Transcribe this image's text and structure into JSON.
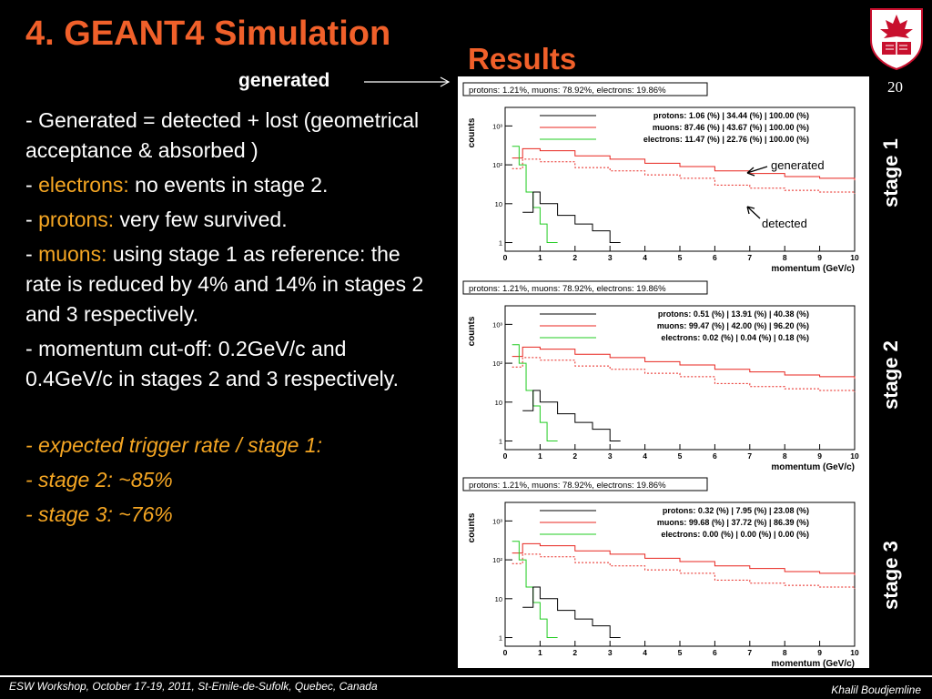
{
  "slide": {
    "title": "4. GEANT4 Simulation",
    "results_heading": "Results",
    "generated_label": "generated",
    "page_number": "20",
    "bullets": [
      {
        "prefix": "- ",
        "highlight": "",
        "text": "Generated = detected + lost (geometrical acceptance & absorbed )"
      },
      {
        "prefix": "- ",
        "highlight": "electrons:",
        "text": " no events in stage 2."
      },
      {
        "prefix": "- ",
        "highlight": "protons:",
        "text": " very few survived."
      },
      {
        "prefix": "- ",
        "highlight": "muons:",
        "text": " using stage 1 as reference: the rate is reduced by 4% and 14% in stages 2 and 3 respectively."
      },
      {
        "prefix": "- ",
        "highlight": "",
        "text": "momentum cut-off: 0.2GeV/c and 0.4GeV/c in stages 2 and 3 respectively."
      }
    ],
    "trigger": [
      "- expected trigger rate / stage 1:",
      "- stage 2: ~85%",
      "- stage 3: ~76%"
    ],
    "footer_left": "ESW Workshop, October 17-19, 2011, St-Emile-de-Sufolk, Quebec, Canada",
    "footer_right": "Khalil Boudjemline"
  },
  "colors": {
    "title": "#f0602a",
    "highlight": "#f5a623",
    "protons": "#000000",
    "muons": "#e8251f",
    "electrons": "#22cc22"
  },
  "chart_data": [
    {
      "type": "line",
      "stage_label": "stage 1",
      "header": "protons: 1.21%, muons: 78.92%, electrons: 19.86%",
      "xlabel": "momentum (GeV/c)",
      "ylabel": "counts",
      "yscale": "log",
      "xticks": [
        "0",
        "1",
        "2",
        "3",
        "4",
        "5",
        "6",
        "7",
        "8",
        "9",
        "10"
      ],
      "yticks": [
        "1",
        "10",
        "10²",
        "10³"
      ],
      "legend": [
        {
          "name": "protons:  1.06 (%) | 34.44 (%) | 100.00 (%)",
          "color": "#000000"
        },
        {
          "name": "muons: 87.46 (%) | 43.67 (%) | 100.00 (%)",
          "color": "#e8251f"
        },
        {
          "name": "electrons: 11.47 (%) | 22.76 (%) | 100.00 (%)",
          "color": "#22cc22"
        }
      ],
      "annotations": [
        "generated",
        "detected"
      ],
      "series": [
        {
          "name": "muons",
          "style": "solid",
          "x": [
            0.2,
            0.5,
            1,
            2,
            3,
            4,
            5,
            6,
            7,
            8,
            9,
            10
          ],
          "y": [
            150,
            260,
            230,
            170,
            140,
            110,
            90,
            70,
            60,
            50,
            45,
            40
          ]
        },
        {
          "name": "muons",
          "style": "dashed",
          "x": [
            0.2,
            0.5,
            1,
            2,
            3,
            4,
            5,
            6,
            7,
            8,
            9,
            10
          ],
          "y": [
            80,
            140,
            120,
            85,
            70,
            55,
            45,
            30,
            25,
            22,
            20,
            18
          ]
        },
        {
          "name": "electrons",
          "style": "solid",
          "x": [
            0.2,
            0.4,
            0.6,
            0.8,
            1.0,
            1.2
          ],
          "y": [
            300,
            100,
            20,
            8,
            3,
            1
          ]
        },
        {
          "name": "protons",
          "style": "solid",
          "x": [
            0.5,
            0.8,
            1.0,
            1.5,
            2.0,
            2.5,
            3.0
          ],
          "y": [
            6,
            20,
            10,
            5,
            3,
            2,
            1
          ]
        }
      ]
    },
    {
      "type": "line",
      "stage_label": "stage 2",
      "header": "protons: 1.21%, muons: 78.92%, electrons: 19.86%",
      "xlabel": "momentum (GeV/c)",
      "ylabel": "counts",
      "yscale": "log",
      "xticks": [
        "0",
        "1",
        "2",
        "3",
        "4",
        "5",
        "6",
        "7",
        "8",
        "9",
        "10"
      ],
      "yticks": [
        "1",
        "10",
        "10²",
        "10³"
      ],
      "legend": [
        {
          "name": "protons:  0.51 (%) | 13.91 (%) | 40.38 (%)",
          "color": "#000000"
        },
        {
          "name": "muons: 99.47 (%) | 42.00 (%) | 96.20 (%)",
          "color": "#e8251f"
        },
        {
          "name": "electrons: 0.02 (%) |  0.04 (%) |  0.18 (%)",
          "color": "#22cc22"
        }
      ],
      "series": [
        {
          "name": "muons",
          "style": "solid",
          "x": [
            0.2,
            0.5,
            1,
            2,
            3,
            4,
            5,
            6,
            7,
            8,
            9,
            10
          ],
          "y": [
            150,
            260,
            230,
            170,
            140,
            110,
            90,
            70,
            60,
            50,
            45,
            40
          ]
        },
        {
          "name": "muons",
          "style": "dashed",
          "x": [
            0.2,
            0.5,
            1,
            2,
            3,
            4,
            5,
            6,
            7,
            8,
            9,
            10
          ],
          "y": [
            80,
            140,
            120,
            85,
            70,
            55,
            45,
            30,
            25,
            22,
            20,
            18
          ]
        },
        {
          "name": "electrons",
          "style": "solid",
          "x": [
            0.2,
            0.4,
            0.6,
            0.8,
            1.0,
            1.2
          ],
          "y": [
            300,
            100,
            20,
            8,
            3,
            1
          ]
        },
        {
          "name": "protons",
          "style": "solid",
          "x": [
            0.5,
            0.8,
            1.0,
            1.5,
            2.0,
            2.5,
            3.0
          ],
          "y": [
            6,
            20,
            10,
            5,
            3,
            2,
            1
          ]
        }
      ]
    },
    {
      "type": "line",
      "stage_label": "stage 3",
      "header": "protons: 1.21%, muons: 78.92%, electrons: 19.86%",
      "xlabel": "momentum (GeV/c)",
      "ylabel": "counts",
      "yscale": "log",
      "xticks": [
        "0",
        "1",
        "2",
        "3",
        "4",
        "5",
        "6",
        "7",
        "8",
        "9",
        "10"
      ],
      "yticks": [
        "1",
        "10",
        "10²",
        "10³"
      ],
      "legend": [
        {
          "name": "protons:  0.32 (%) |  7.95 (%) | 23.08 (%)",
          "color": "#000000"
        },
        {
          "name": "muons: 99.68 (%) | 37.72 (%) | 86.39 (%)",
          "color": "#e8251f"
        },
        {
          "name": "electrons: 0.00 (%) | 0.00 (%) | 0.00 (%)",
          "color": "#22cc22"
        }
      ],
      "series": [
        {
          "name": "muons",
          "style": "solid",
          "x": [
            0.2,
            0.5,
            1,
            2,
            3,
            4,
            5,
            6,
            7,
            8,
            9,
            10
          ],
          "y": [
            150,
            260,
            230,
            170,
            140,
            110,
            90,
            70,
            60,
            50,
            45,
            40
          ]
        },
        {
          "name": "muons",
          "style": "dashed",
          "x": [
            0.2,
            0.5,
            1,
            2,
            3,
            4,
            5,
            6,
            7,
            8,
            9,
            10
          ],
          "y": [
            80,
            140,
            120,
            85,
            70,
            55,
            45,
            30,
            25,
            22,
            20,
            18
          ]
        },
        {
          "name": "electrons",
          "style": "solid",
          "x": [
            0.2,
            0.4,
            0.6,
            0.8,
            1.0,
            1.2
          ],
          "y": [
            300,
            100,
            20,
            8,
            3,
            1
          ]
        },
        {
          "name": "protons",
          "style": "solid",
          "x": [
            0.5,
            0.8,
            1.0,
            1.5,
            2.0,
            2.5,
            3.0
          ],
          "y": [
            6,
            20,
            10,
            5,
            3,
            2,
            1
          ]
        }
      ]
    }
  ]
}
